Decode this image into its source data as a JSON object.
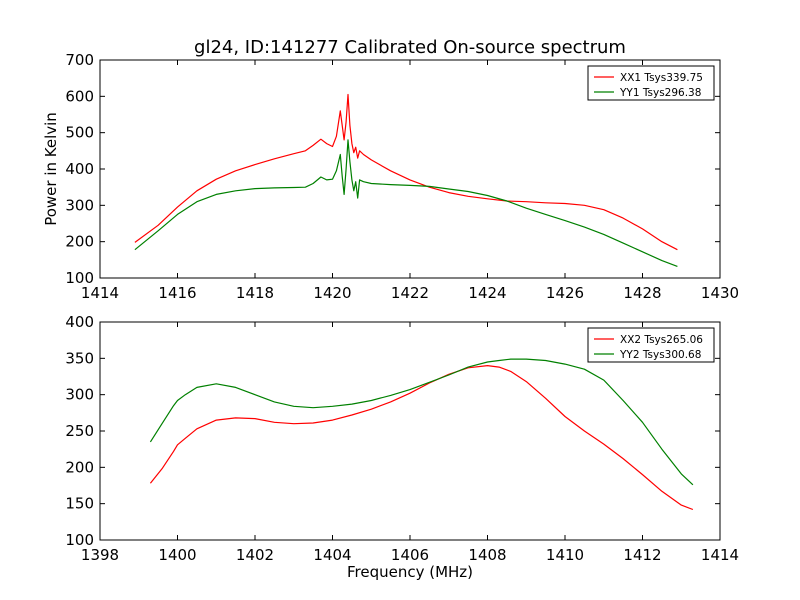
{
  "title": "gl24, ID:141277 Calibrated On-source spectrum",
  "chart_data": [
    {
      "type": "line",
      "id": "top",
      "xlabel": "",
      "ylabel": "Power in Kelvin",
      "xlim": [
        1414,
        1430
      ],
      "ylim": [
        100,
        700
      ],
      "xticks": [
        1414,
        1416,
        1418,
        1420,
        1422,
        1424,
        1426,
        1428,
        1430
      ],
      "yticks": [
        100,
        200,
        300,
        400,
        500,
        600,
        700
      ],
      "legend_position": "top-right",
      "series": [
        {
          "name": "XX1 Tsys339.75",
          "color": "#ff0000",
          "x": [
            1414.9,
            1415.5,
            1416.0,
            1416.5,
            1417.0,
            1417.5,
            1418.0,
            1418.5,
            1419.0,
            1419.3,
            1419.5,
            1419.7,
            1419.85,
            1420.0,
            1420.1,
            1420.2,
            1420.25,
            1420.3,
            1420.35,
            1420.4,
            1420.45,
            1420.5,
            1420.55,
            1420.6,
            1420.65,
            1420.7,
            1420.8,
            1421.0,
            1421.5,
            1422.0,
            1422.5,
            1423.0,
            1423.5,
            1424.0,
            1424.5,
            1425.0,
            1425.5,
            1426.0,
            1426.5,
            1427.0,
            1427.5,
            1428.0,
            1428.5,
            1428.9
          ],
          "y": [
            198,
            245,
            295,
            340,
            372,
            395,
            412,
            428,
            442,
            450,
            465,
            482,
            470,
            462,
            490,
            560,
            520,
            480,
            530,
            605,
            520,
            470,
            445,
            460,
            430,
            450,
            440,
            425,
            395,
            370,
            350,
            335,
            325,
            318,
            312,
            310,
            307,
            305,
            300,
            288,
            265,
            235,
            200,
            178
          ]
        },
        {
          "name": "YY1 Tsys296.38",
          "color": "#008000",
          "x": [
            1414.9,
            1415.5,
            1416.0,
            1416.5,
            1417.0,
            1417.5,
            1418.0,
            1418.5,
            1419.0,
            1419.3,
            1419.5,
            1419.7,
            1419.85,
            1420.0,
            1420.1,
            1420.2,
            1420.25,
            1420.3,
            1420.35,
            1420.4,
            1420.45,
            1420.5,
            1420.55,
            1420.6,
            1420.65,
            1420.7,
            1420.8,
            1421.0,
            1421.5,
            1422.0,
            1422.5,
            1423.0,
            1423.5,
            1424.0,
            1424.5,
            1425.0,
            1425.5,
            1426.0,
            1426.5,
            1427.0,
            1427.5,
            1428.0,
            1428.5,
            1428.9
          ],
          "y": [
            178,
            230,
            275,
            310,
            330,
            340,
            346,
            348,
            349,
            350,
            360,
            378,
            370,
            372,
            395,
            440,
            380,
            330,
            400,
            480,
            420,
            370,
            340,
            365,
            320,
            370,
            365,
            360,
            357,
            355,
            352,
            345,
            338,
            327,
            312,
            292,
            275,
            258,
            240,
            220,
            196,
            172,
            148,
            132
          ]
        }
      ]
    },
    {
      "type": "line",
      "id": "bottom",
      "xlabel": "Frequency (MHz)",
      "ylabel": "",
      "xlim": [
        1398,
        1414
      ],
      "ylim": [
        100,
        400
      ],
      "xticks": [
        1398,
        1400,
        1402,
        1404,
        1406,
        1408,
        1410,
        1412,
        1414
      ],
      "yticks": [
        100,
        150,
        200,
        250,
        300,
        350,
        400
      ],
      "legend_position": "top-right",
      "series": [
        {
          "name": "XX2 Tsys265.06",
          "color": "#ff0000",
          "x": [
            1399.3,
            1399.6,
            1399.9,
            1400.0,
            1400.2,
            1400.5,
            1401.0,
            1401.5,
            1402.0,
            1402.5,
            1403.0,
            1403.5,
            1404.0,
            1404.5,
            1405.0,
            1405.5,
            1406.0,
            1406.5,
            1407.0,
            1407.5,
            1408.0,
            1408.3,
            1408.6,
            1409.0,
            1409.5,
            1410.0,
            1410.5,
            1411.0,
            1411.5,
            1412.0,
            1412.5,
            1413.0,
            1413.3
          ],
          "y": [
            178,
            198,
            222,
            231,
            240,
            253,
            265,
            268,
            267,
            262,
            260,
            261,
            265,
            272,
            280,
            290,
            302,
            316,
            328,
            337,
            340,
            338,
            332,
            318,
            295,
            270,
            250,
            232,
            212,
            190,
            167,
            148,
            142
          ]
        },
        {
          "name": "YY2 Tsys300.68",
          "color": "#008000",
          "x": [
            1399.3,
            1399.6,
            1399.9,
            1400.0,
            1400.2,
            1400.5,
            1401.0,
            1401.5,
            1402.0,
            1402.5,
            1403.0,
            1403.5,
            1404.0,
            1404.5,
            1405.0,
            1405.5,
            1406.0,
            1406.5,
            1407.0,
            1407.5,
            1408.0,
            1408.3,
            1408.6,
            1409.0,
            1409.5,
            1410.0,
            1410.5,
            1411.0,
            1411.5,
            1412.0,
            1412.5,
            1413.0,
            1413.3
          ],
          "y": [
            235,
            260,
            285,
            292,
            300,
            310,
            315,
            310,
            300,
            290,
            284,
            282,
            284,
            287,
            292,
            299,
            307,
            317,
            327,
            338,
            345,
            347,
            349,
            349,
            347,
            342,
            335,
            320,
            292,
            262,
            225,
            191,
            176
          ]
        }
      ]
    }
  ]
}
